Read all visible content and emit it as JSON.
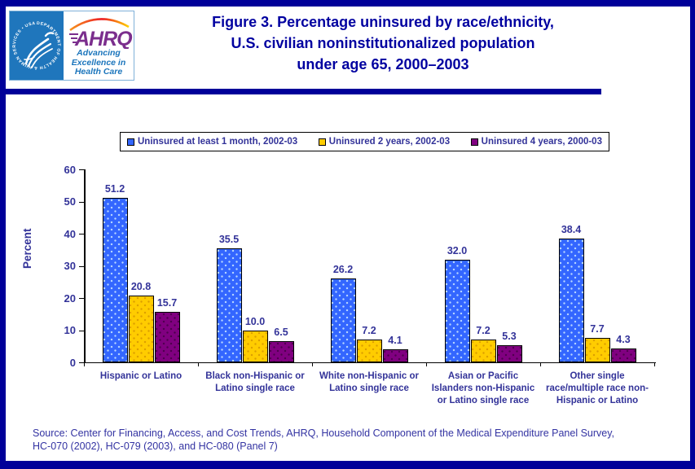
{
  "colors": {
    "frame_navy": "#000099",
    "title_navy": "#0000A0",
    "label_navy": "#333399",
    "hhs_blue": "#1F76BC",
    "ahrq_purple": "#7B2E8D",
    "tagline_blue": "#1B75BC"
  },
  "header": {
    "logo": {
      "hhs_circular_text": "DEPARTMENT OF HEALTH & HUMAN SERVICES • USA",
      "acronym": "AHRQ",
      "tagline_lines": [
        "Advancing",
        "Excellence in",
        "Health Care"
      ]
    },
    "title_lines": [
      "Figure 3. Percentage uninsured by race/ethnicity,",
      "U.S. civilian noninstitutionalized population",
      "under age 65, 2000–2003"
    ]
  },
  "legend": [
    {
      "label": "Uninsured at least 1 month, 2002-03",
      "color": "#3366FF"
    },
    {
      "label": "Uninsured 2 years, 2002-03",
      "color": "#FFCC00"
    },
    {
      "label": "Uninsured 4 years, 2000-03",
      "color": "#800080"
    }
  ],
  "chart_data": {
    "type": "bar",
    "title": "Figure 3. Percentage uninsured by race/ethnicity, U.S. civilian noninstitutionalized population under age 65, 2000–2003",
    "xlabel": "",
    "ylabel": "Percent",
    "ylim": [
      0,
      60
    ],
    "yticks": [
      0,
      10,
      20,
      30,
      40,
      50,
      60
    ],
    "grid": false,
    "legend_position": "top",
    "categories": [
      [
        "Hispanic or Latino"
      ],
      [
        "Black non-Hispanic or",
        "Latino single race"
      ],
      [
        "White non-Hispanic or",
        "Latino single race"
      ],
      [
        "Asian or Pacific",
        "Islanders non-Hispanic",
        "or Latino single race"
      ],
      [
        "Other single",
        "race/multiple race non-",
        "Hispanic or Latino"
      ]
    ],
    "series": [
      {
        "name": "Uninsured at least 1 month, 2002-03",
        "color": "#3366FF",
        "values": [
          51.2,
          35.5,
          26.2,
          32.0,
          38.4
        ]
      },
      {
        "name": "Uninsured 2 years, 2002-03",
        "color": "#FFCC00",
        "values": [
          20.8,
          10.0,
          7.2,
          7.2,
          7.7
        ]
      },
      {
        "name": "Uninsured 4 years, 2000-03",
        "color": "#800080",
        "values": [
          15.7,
          6.5,
          4.1,
          5.3,
          4.3
        ]
      }
    ]
  },
  "source": {
    "lines": [
      "Source: Center for Financing, Access, and Cost Trends, AHRQ, Household Component of the Medical Expenditure Panel Survey,",
      "HC-070 (2002), HC-079 (2003), and HC-080 (Panel 7)"
    ]
  }
}
